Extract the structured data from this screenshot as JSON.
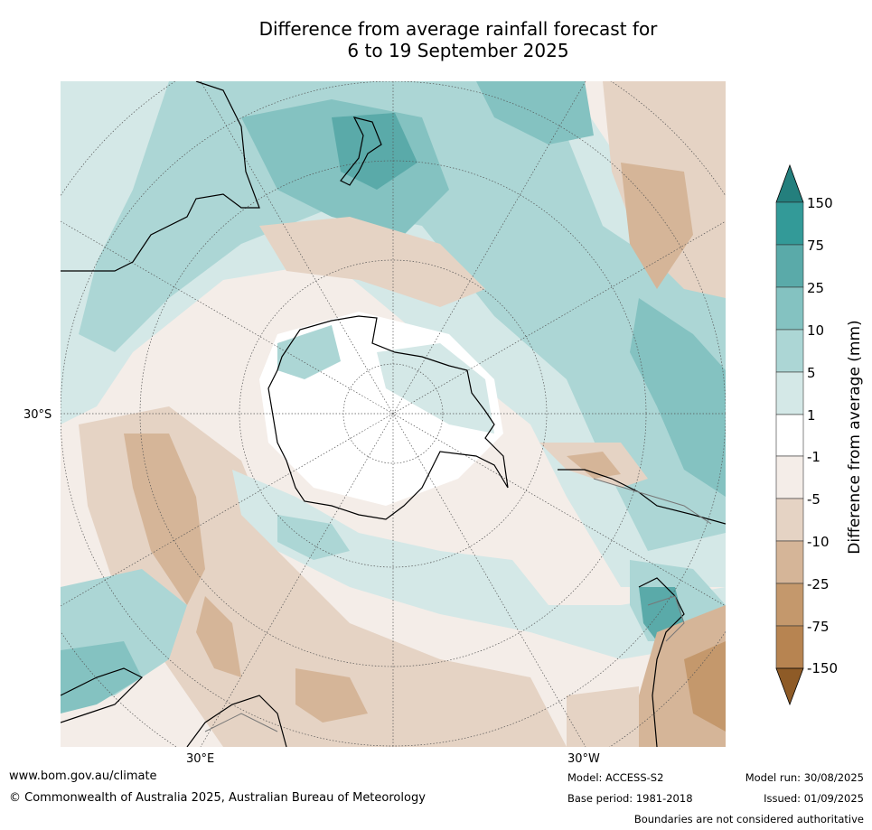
{
  "title": {
    "line1": "Difference from average rainfall forecast for",
    "line2": "6 to 19 September 2025"
  },
  "map": {
    "projection": "south-polar-stereographic",
    "graticule_labels": {
      "lat_30s": "30°S",
      "lon_30e": "30°E",
      "lon_30w": "30°W"
    }
  },
  "colorbar": {
    "label": "Difference from average (mm)",
    "ticks": [
      "150",
      "75",
      "25",
      "10",
      "5",
      "1",
      "-1",
      "-5",
      "-10",
      "-25",
      "-75",
      "-150"
    ],
    "colors": {
      "gt150": "#247f7d",
      "75_150": "#339a98",
      "25_75": "#5aaaa9",
      "10_25": "#84c2c1",
      "5_10": "#acd6d5",
      "1_5": "#d4e8e7",
      "n1_1": "#ffffff",
      "n5_n1": "#f4ede8",
      "n10_n5": "#e5d3c4",
      "n25_n10": "#d5b598",
      "n75_n25": "#c4986c",
      "n150_n75": "#b78451",
      "lt_n150": "#8e5b27"
    }
  },
  "footer": {
    "url": "www.bom.gov.au/climate",
    "copyright": "© Commonwealth of Australia 2025, Australian Bureau of Meteorology",
    "model": "Model: ACCESS-S2",
    "base_period": "Base period: 1981-2018",
    "model_run": "Model run: 30/08/2025",
    "issued": "Issued: 01/09/2025",
    "disclaimer": "Boundaries are not considered authoritative"
  }
}
